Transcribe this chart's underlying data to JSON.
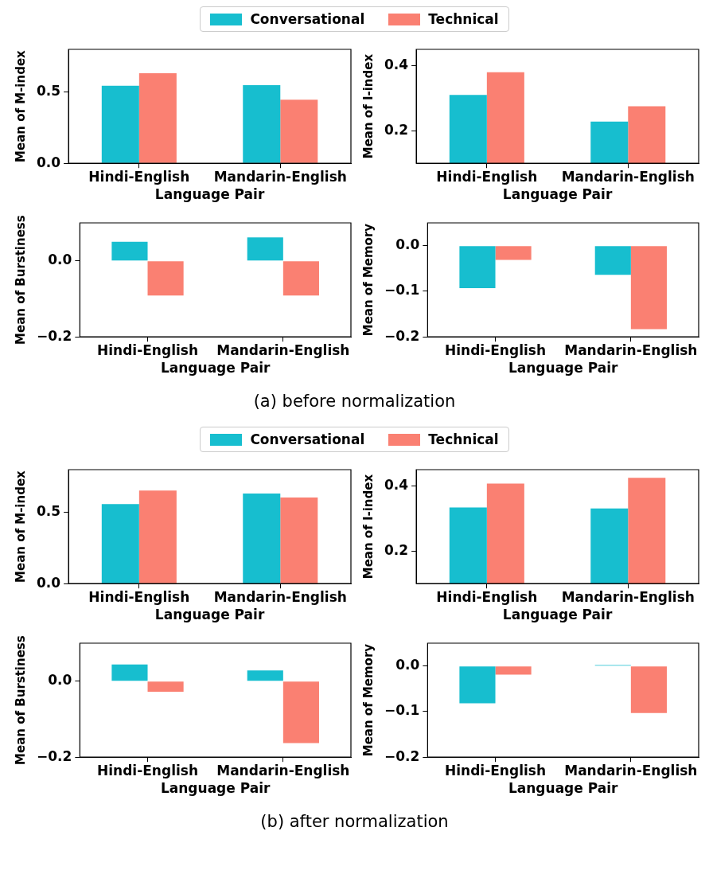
{
  "chart_data": [
    {
      "type": "bar",
      "ylabel": "Mean of M-index",
      "xlabel": "Language Pair",
      "categories": [
        "Hindi-English",
        "Mandarin-English"
      ],
      "legend": "top",
      "series": [
        {
          "name": "Conversational",
          "color": "#17becf",
          "values": [
            0.545,
            0.549
          ]
        },
        {
          "name": "Technical",
          "color": "#fa8072",
          "values": [
            0.632,
            0.447
          ]
        }
      ],
      "ylim": [
        0,
        0.8
      ],
      "yticks": [
        {
          "value": 0,
          "label": "0.0"
        },
        {
          "value": 0.5,
          "label": "0.5"
        }
      ]
    },
    {
      "type": "bar",
      "ylabel": "Mean of I-index",
      "xlabel": "Language Pair",
      "categories": [
        "Hindi-English",
        "Mandarin-English"
      ],
      "series": [
        {
          "color": "#17becf",
          "values": [
            0.31,
            0.228
          ]
        },
        {
          "color": "#fa8072",
          "values": [
            0.38,
            0.275
          ]
        }
      ],
      "ylim": [
        0.1,
        0.45
      ],
      "yticks": [
        {
          "value": 0.2,
          "label": "0.2"
        },
        {
          "value": 0.4,
          "label": "0.4"
        }
      ]
    },
    {
      "type": "bar",
      "ylabel": "Mean of Burstiness",
      "xlabel": "Language Pair",
      "categories": [
        "Hindi-English",
        "Mandarin-English"
      ],
      "series": [
        {
          "color": "#17becf",
          "values": [
            0.05,
            0.062
          ]
        },
        {
          "color": "#fa8072",
          "values": [
            -0.091,
            -0.091
          ]
        }
      ],
      "ylim": [
        -0.2,
        0.1
      ],
      "yticks": [
        {
          "value": -0.2,
          "label": "−0.2"
        },
        {
          "value": 0,
          "label": "0.0"
        }
      ]
    },
    {
      "type": "bar",
      "ylabel": "Mean of Memory",
      "xlabel": "Language Pair",
      "categories": [
        "Hindi-English",
        "Mandarin-English"
      ],
      "series": [
        {
          "color": "#17becf",
          "values": [
            -0.093,
            -0.064
          ]
        },
        {
          "color": "#fa8072",
          "values": [
            -0.031,
            -0.183
          ]
        }
      ],
      "ylim": [
        -0.2,
        0.05
      ],
      "yticks": [
        {
          "value": -0.2,
          "label": "−0.2"
        },
        {
          "value": -0.1,
          "label": "−0.1"
        },
        {
          "value": 0,
          "label": "0.0"
        }
      ],
      "annotations": [
        "(a) before normalization"
      ]
    },
    {
      "type": "bar",
      "ylabel": "Mean of M-index",
      "xlabel": "Language Pair",
      "categories": [
        "Hindi-English",
        "Mandarin-English"
      ],
      "legend": "top",
      "series": [
        {
          "name": "Conversational",
          "color": "#17becf",
          "values": [
            0.559,
            0.632
          ]
        },
        {
          "name": "Technical",
          "color": "#fa8072",
          "values": [
            0.653,
            0.605
          ]
        }
      ],
      "ylim": [
        0,
        0.8
      ],
      "yticks": [
        {
          "value": 0,
          "label": "0.0"
        },
        {
          "value": 0.5,
          "label": "0.5"
        }
      ]
    },
    {
      "type": "bar",
      "ylabel": "Mean of I-index",
      "xlabel": "Language Pair",
      "categories": [
        "Hindi-English",
        "Mandarin-English"
      ],
      "series": [
        {
          "color": "#17becf",
          "values": [
            0.334,
            0.331
          ]
        },
        {
          "color": "#fa8072",
          "values": [
            0.407,
            0.425
          ]
        }
      ],
      "ylim": [
        0.1,
        0.45
      ],
      "yticks": [
        {
          "value": 0.2,
          "label": "0.2"
        },
        {
          "value": 0.4,
          "label": "0.4"
        }
      ]
    },
    {
      "type": "bar",
      "ylabel": "Mean of Burstiness",
      "xlabel": "Language Pair",
      "categories": [
        "Hindi-English",
        "Mandarin-English"
      ],
      "series": [
        {
          "color": "#17becf",
          "values": [
            0.044,
            0.028
          ]
        },
        {
          "color": "#fa8072",
          "values": [
            -0.028,
            -0.163
          ]
        }
      ],
      "ylim": [
        -0.2,
        0.1
      ],
      "yticks": [
        {
          "value": -0.2,
          "label": "−0.2"
        },
        {
          "value": 0,
          "label": "0.0"
        }
      ]
    },
    {
      "type": "bar",
      "ylabel": "Mean of Memory",
      "xlabel": "Language Pair",
      "categories": [
        "Hindi-English",
        "Mandarin-English"
      ],
      "series": [
        {
          "color": "#17becf",
          "values": [
            -0.082,
            0.002
          ]
        },
        {
          "color": "#fa8072",
          "values": [
            -0.019,
            -0.103
          ]
        }
      ],
      "ylim": [
        -0.2,
        0.05
      ],
      "yticks": [
        {
          "value": -0.2,
          "label": "−0.2"
        },
        {
          "value": -0.1,
          "label": "−0.1"
        },
        {
          "value": 0,
          "label": "0.0"
        }
      ],
      "annotations": [
        "(b) after normalization"
      ]
    }
  ]
}
